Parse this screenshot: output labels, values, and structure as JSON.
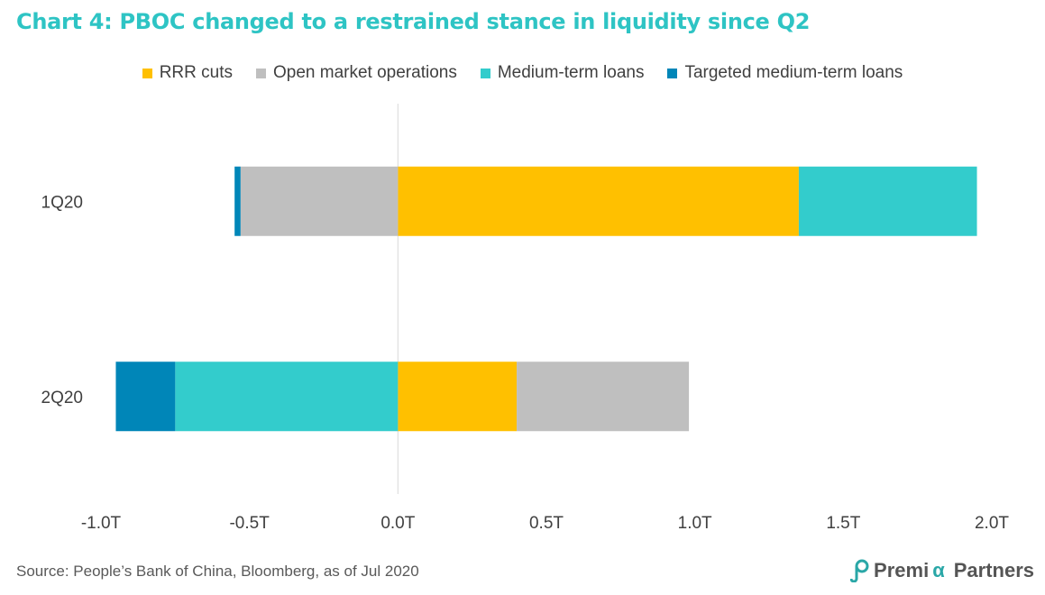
{
  "title": "Chart 4: PBOC changed to a restrained stance in liquidity since Q2",
  "source": "Source: People’s Bank of China, Bloomberg,  as of Jul 2020",
  "brand": {
    "prefix": "Premi",
    "alpha": "α",
    "suffix": "Partners"
  },
  "colors": {
    "RRR cuts": "#ffc000",
    "Open market operations": "#bfbfbf",
    "Medium-term loans": "#33cccc",
    "Targeted medium-term loans": "#0086b8",
    "title": "#2ec4c4"
  },
  "chart_data": {
    "type": "bar",
    "orientation": "horizontal",
    "stacked": true,
    "categories": [
      "1Q20",
      "2Q20"
    ],
    "series": [
      {
        "name": "RRR cuts",
        "values": [
          1.35,
          0.4
        ]
      },
      {
        "name": "Open market operations",
        "values": [
          -0.53,
          0.58
        ]
      },
      {
        "name": "Medium-term loans",
        "values": [
          0.6,
          -0.75
        ]
      },
      {
        "name": "Targeted medium-term loans",
        "values": [
          -0.02,
          -0.2
        ]
      }
    ],
    "xlim": [
      -1.0,
      2.0
    ],
    "xticks": [
      "-1.0T",
      "-0.5T",
      "0.0T",
      "0.5T",
      "1.0T",
      "1.5T",
      "2.0T"
    ],
    "grid": false,
    "legend_position": "top"
  }
}
